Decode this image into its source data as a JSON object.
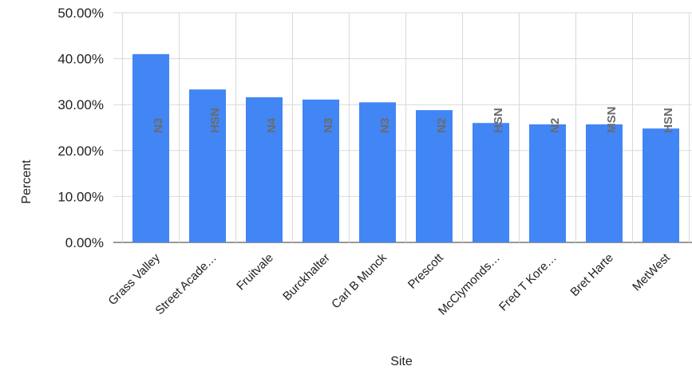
{
  "chart_data": {
    "type": "bar",
    "categories": [
      "Grass Valley",
      "Street Acade…",
      "Fruitvale",
      "Burckhalter",
      "Carl B Munck",
      "Prescott",
      "McClymonds…",
      "Fred T Kore…",
      "Bret Harte",
      "MetWest"
    ],
    "values": [
      41.0,
      33.3,
      31.6,
      31.1,
      30.5,
      28.8,
      26.0,
      25.7,
      25.7,
      24.8
    ],
    "data_labels": [
      "N3",
      "HSN",
      "N4",
      "N3",
      "N3",
      "N2",
      "HSN",
      "N2",
      "MSN",
      "HSN"
    ],
    "xlabel": "Site",
    "ylabel": "Percent",
    "ylim": [
      0,
      50
    ],
    "yticks": [
      "0.00%",
      "10.00%",
      "20.00%",
      "30.00%",
      "40.00%",
      "50.00%"
    ],
    "grid": true,
    "bar_color": "#4285f4",
    "grid_color": "#d9d9d9"
  }
}
